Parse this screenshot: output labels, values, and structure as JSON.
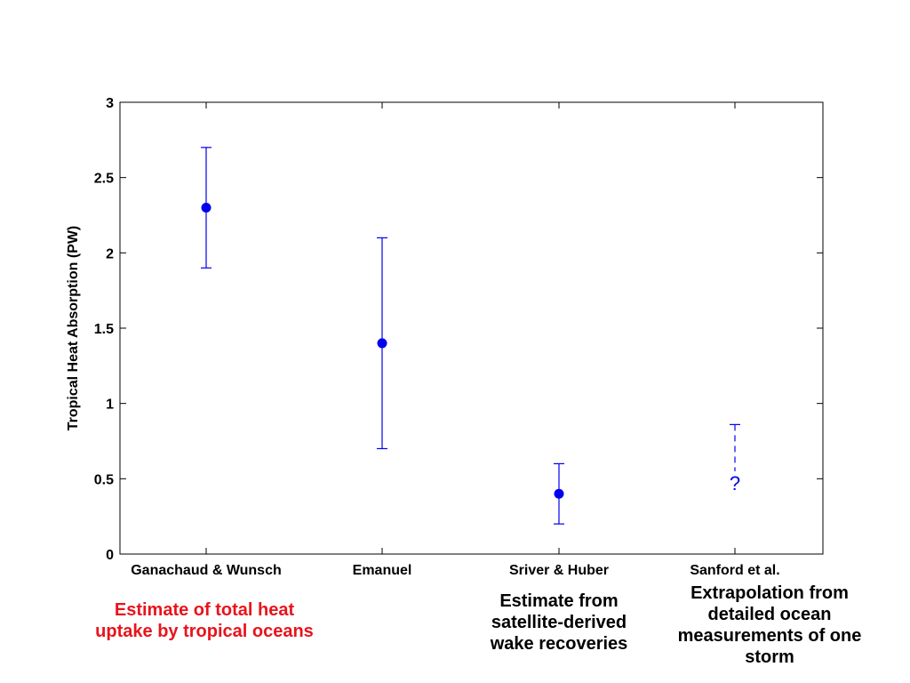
{
  "chart_data": {
    "type": "scatter",
    "title": "",
    "xlabel": "",
    "ylabel": "Tropical Heat Absorption (PW)",
    "ylim": [
      0,
      3
    ],
    "yticks": [
      "0",
      "0.5",
      "1",
      "1.5",
      "2",
      "2.5",
      "3"
    ],
    "ytick_values": [
      0,
      0.5,
      1,
      1.5,
      2,
      2.5,
      3
    ],
    "grid": false,
    "categories": [
      "Ganachaud & Wunsch",
      "Emanuel",
      "Sriver & Huber",
      "Sanford et al."
    ],
    "points": [
      {
        "category": "Ganachaud & Wunsch",
        "value": 2.3,
        "err_low": 1.9,
        "err_high": 2.7,
        "errorbar_style": "solid"
      },
      {
        "category": "Emanuel",
        "value": 1.4,
        "err_low": 0.7,
        "err_high": 2.1,
        "errorbar_style": "solid"
      },
      {
        "category": "Sriver & Huber",
        "value": 0.4,
        "err_low": 0.2,
        "err_high": 0.6,
        "errorbar_style": "solid"
      },
      {
        "category": "Sanford et al.",
        "value": null,
        "err_low": 0.55,
        "err_high": 0.86,
        "errorbar_style": "dashed",
        "marker_text": "?"
      }
    ],
    "annotations": [
      {
        "category": "Ganachaud & Wunsch",
        "lines": [
          "Estimate of total heat",
          "uptake by tropical oceans"
        ],
        "color": "#e8141c"
      },
      {
        "category": "Sriver & Huber",
        "lines": [
          "Estimate from",
          "satellite-derived",
          "wake recoveries"
        ],
        "color": "#000000"
      },
      {
        "category": "Sanford et al.",
        "lines": [
          "Extrapolation from",
          "detailed ocean",
          "measurements of one",
          "storm"
        ],
        "color": "#000000"
      }
    ]
  },
  "colors": {
    "series": "#0000ee",
    "axis": "#000000",
    "annotation_red": "#e8141c"
  }
}
